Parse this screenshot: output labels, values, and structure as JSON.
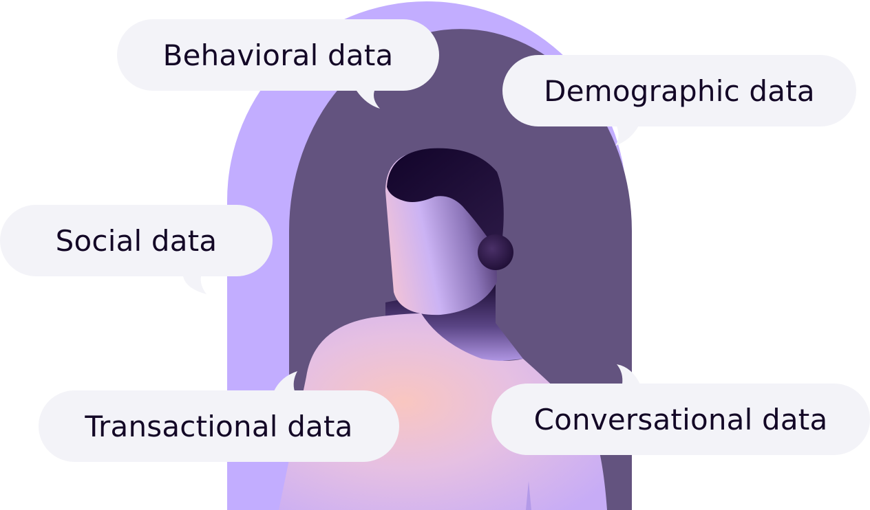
{
  "labels": {
    "behavioral": "Behavioral data",
    "demographic": "Demographic data",
    "social": "Social data",
    "transactional": "Transactional data",
    "conversational": "Conversational data"
  },
  "colors": {
    "outer_arch": "#c2adff",
    "inner_arch": "#63537f",
    "bubble": "#f3f3f8",
    "text": "#130726",
    "hair": "#160628",
    "skin_light": "#d8c4ff",
    "body_peach": "#f7c6c4",
    "body_lilac": "#c2adff"
  }
}
